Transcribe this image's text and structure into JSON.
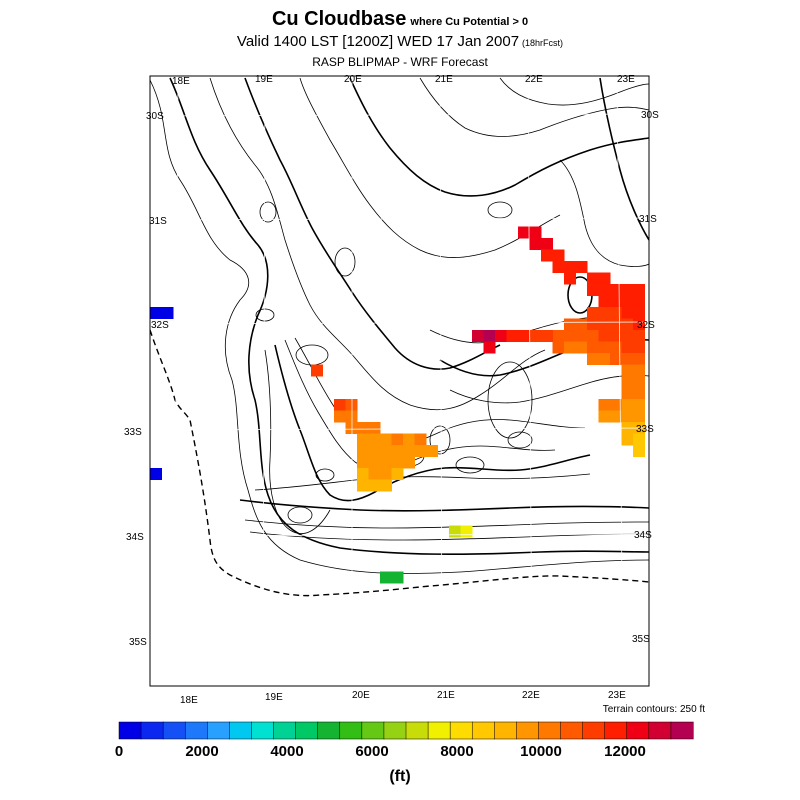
{
  "header": {
    "title": "Cu Cloudbase",
    "title_qualifier": "where Cu Potential > 0",
    "valid": "Valid 1400 LST [1200Z] WED 17 Jan 2007",
    "forecast_hour": "(18hrFcst)",
    "source": "RASP BLIPMAP - WRF Forecast"
  },
  "map": {
    "top_lon_labels": [
      "18E",
      "19E",
      "20E",
      "21E",
      "22E",
      "23E"
    ],
    "bottom_lon_labels": [
      "18E",
      "19E",
      "20E",
      "21E",
      "22E",
      "23E"
    ],
    "left_lat_labels": [
      "30S",
      "31S",
      "32S",
      "33S",
      "34S",
      "35S"
    ],
    "right_lat_labels": [
      "30S",
      "31S",
      "32S",
      "33S",
      "34S",
      "35S"
    ],
    "terrain_note": "Terrain contours: 250 ft"
  },
  "colorbar": {
    "colors": [
      "#0000e6",
      "#0a28f0",
      "#1450f5",
      "#1e78fa",
      "#28a0ff",
      "#00c8f0",
      "#00e1d2",
      "#00d296",
      "#00c864",
      "#14b432",
      "#32be14",
      "#64c814",
      "#96d214",
      "#c8dc0a",
      "#f0f000",
      "#ffdc00",
      "#ffc800",
      "#ffb400",
      "#ff9600",
      "#ff7800",
      "#ff5a00",
      "#ff3c00",
      "#ff1e00",
      "#f00014",
      "#d20032",
      "#b40050"
    ],
    "labels": [
      "0",
      "2000",
      "4000",
      "6000",
      "8000",
      "10000",
      "12000"
    ],
    "units": "(ft)"
  }
}
